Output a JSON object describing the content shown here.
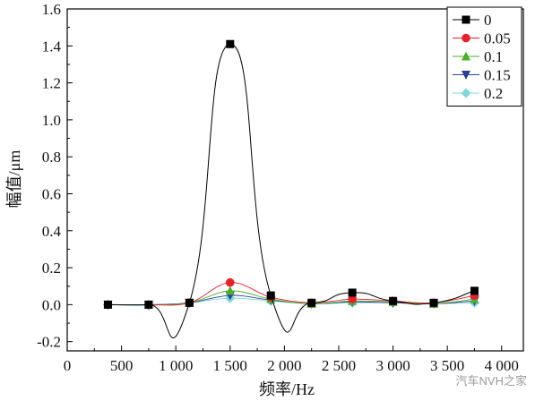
{
  "chart_data": {
    "type": "line",
    "xlabel": "频率/Hz",
    "ylabel": "幅值/μm",
    "xlim": [
      0,
      4200
    ],
    "ylim": [
      -0.25,
      1.6
    ],
    "x_ticks": [
      0,
      500,
      1000,
      1500,
      2000,
      2500,
      3000,
      3500,
      4000
    ],
    "x_tick_labels": [
      "0",
      "500",
      "1 000",
      "1 500",
      "2 000",
      "2 500",
      "3 000",
      "3 500",
      "4 000"
    ],
    "y_ticks": [
      -0.2,
      0.0,
      0.2,
      0.4,
      0.6,
      0.8,
      1.0,
      1.2,
      1.4,
      1.6
    ],
    "y_tick_labels": [
      "-0.2",
      "0.0",
      "0.2",
      "0.4",
      "0.6",
      "0.8",
      "1.0",
      "1.2",
      "1.4",
      "1.6"
    ],
    "legend_position": "top-right",
    "grid": false,
    "x": [
      375,
      750,
      1125,
      1500,
      1875,
      2250,
      2625,
      3000,
      3375,
      3750
    ],
    "series": [
      {
        "name": "0",
        "color": "#000000",
        "marker": "square",
        "values": [
          0.0,
          0.0,
          0.01,
          1.41,
          0.05,
          0.01,
          0.065,
          0.02,
          0.01,
          0.075
        ]
      },
      {
        "name": "0.05",
        "color": "#e8202a",
        "marker": "circle",
        "values": [
          0.0,
          0.0,
          0.01,
          0.12,
          0.04,
          0.01,
          0.03,
          0.02,
          0.01,
          0.05
        ]
      },
      {
        "name": "0.1",
        "color": "#4caf2a",
        "marker": "triangle-up",
        "values": [
          0.0,
          0.0,
          0.01,
          0.075,
          0.03,
          0.005,
          0.02,
          0.015,
          0.005,
          0.03
        ]
      },
      {
        "name": "0.15",
        "color": "#2b3f99",
        "marker": "triangle-down",
        "values": [
          0.0,
          0.0,
          0.01,
          0.05,
          0.025,
          0.005,
          0.015,
          0.01,
          0.005,
          0.02
        ]
      },
      {
        "name": "0.2",
        "color": "#7fd8d8",
        "marker": "diamond",
        "values": [
          0.0,
          -0.005,
          0.01,
          0.035,
          0.02,
          0.005,
          0.01,
          0.01,
          0.005,
          0.01
        ]
      }
    ]
  },
  "watermark_text": "汽车NVH之家"
}
